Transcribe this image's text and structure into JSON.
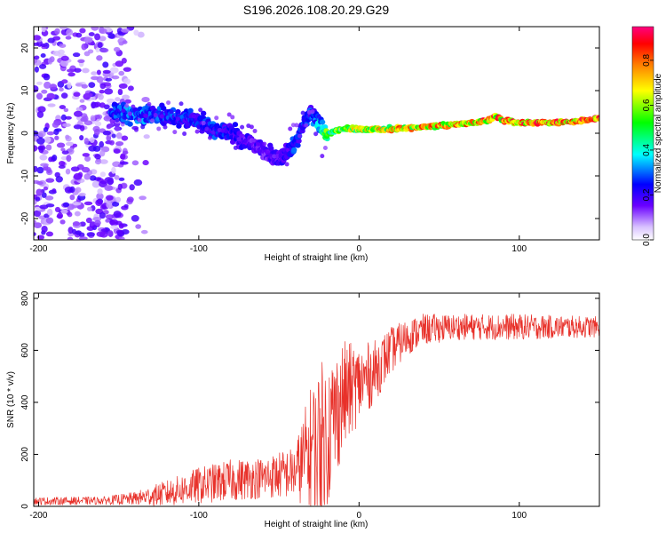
{
  "title": "S196.2026.108.20.29.G29",
  "chart_data": [
    {
      "type": "heatmap",
      "name": "spectrogram",
      "xlabel": "Height of straight line (km)",
      "ylabel": "Frequency (Hz)",
      "xlim": [
        -203,
        150
      ],
      "ylim": [
        -25,
        25
      ],
      "xticks": [
        -200,
        -100,
        0,
        100
      ],
      "xtick_labels": [
        "-200",
        "-100",
        "0",
        "100"
      ],
      "yticks": [
        -20,
        -10,
        0,
        10,
        20
      ],
      "ytick_labels": [
        "-20",
        "-10",
        "0",
        "10",
        "20"
      ],
      "colorbar": {
        "label": "Normalized spectral amplitude",
        "range": [
          0,
          0.95
        ],
        "ticks": [
          0,
          0.2,
          0.4,
          0.6,
          0.8
        ],
        "tick_labels": [
          "0.0",
          "0.2",
          "0.4",
          "0.6",
          "0.8"
        ]
      },
      "ridge": {
        "x": [
          -155,
          -140,
          -120,
          -100,
          -90,
          -80,
          -70,
          -60,
          -50,
          -45,
          -40,
          -35,
          -30,
          -25,
          -20,
          -10,
          0,
          20,
          40,
          60,
          70,
          80,
          85,
          90,
          100,
          120,
          140,
          150
        ],
        "freq": [
          5,
          4.5,
          4,
          3,
          1,
          0,
          -2,
          -4,
          -6,
          -5,
          -2,
          2,
          5,
          2,
          0,
          1,
          1,
          1,
          1.5,
          2,
          2.5,
          3,
          4,
          3,
          2.5,
          2.5,
          3,
          3.5
        ],
        "amplitude": [
          0.3,
          0.35,
          0.3,
          0.28,
          0.3,
          0.25,
          0.22,
          0.2,
          0.22,
          0.25,
          0.3,
          0.28,
          0.3,
          0.4,
          0.6,
          0.7,
          0.75,
          0.8,
          0.85,
          0.85,
          0.85,
          0.9,
          0.9,
          0.9,
          0.9,
          0.9,
          0.9,
          0.9
        ]
      },
      "noise_region_x": [
        -203,
        -130
      ],
      "noise_amplitude": 0.12
    },
    {
      "type": "line",
      "name": "snr",
      "xlabel": "Height of straight line (km)",
      "ylabel": "SNR (10 * v/v)",
      "xlim": [
        -203,
        150
      ],
      "ylim": [
        0,
        820
      ],
      "xticks": [
        -200,
        -100,
        0,
        100
      ],
      "xtick_labels": [
        "-200",
        "-100",
        "0",
        "100"
      ],
      "yticks": [
        0,
        200,
        400,
        600,
        800
      ],
      "ytick_labels": [
        "0",
        "200",
        "400",
        "600",
        "800"
      ],
      "color": "#e8312a",
      "envelope": {
        "x": [
          -203,
          -160,
          -140,
          -120,
          -100,
          -80,
          -60,
          -40,
          -30,
          -25,
          -20,
          -15,
          -10,
          -5,
          0,
          10,
          20,
          30,
          40,
          60,
          80,
          100,
          120,
          150
        ],
        "mean": [
          20,
          22,
          30,
          50,
          80,
          100,
          110,
          130,
          220,
          250,
          280,
          350,
          420,
          450,
          470,
          520,
          600,
          650,
          680,
          690,
          690,
          690,
          690,
          690
        ],
        "spread": [
          15,
          15,
          25,
          50,
          70,
          80,
          80,
          100,
          250,
          300,
          300,
          250,
          220,
          180,
          150,
          120,
          90,
          70,
          60,
          50,
          50,
          50,
          45,
          40
        ]
      },
      "sample_count": 1400
    }
  ]
}
